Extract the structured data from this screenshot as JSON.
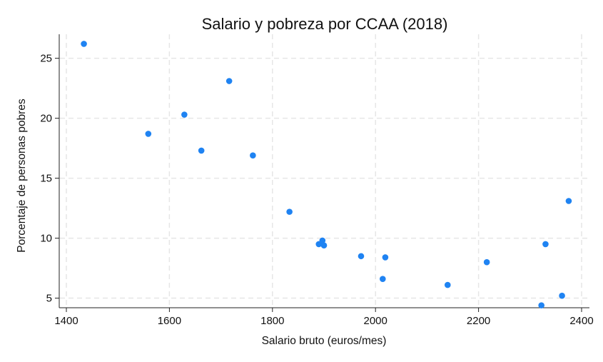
{
  "chart_data": {
    "type": "scatter",
    "title": "Salario y pobreza por CCAA (2018)",
    "xlabel": "Salario bruto (euros/mes)",
    "ylabel": "Porcentaje de personas pobres",
    "xlim": [
      1400,
      2400
    ],
    "ylim": [
      4.2,
      27
    ],
    "xticks": [
      1400,
      1600,
      1800,
      2000,
      2200,
      2400
    ],
    "yticks": [
      5,
      10,
      15,
      20,
      25
    ],
    "grid": true,
    "marker_color": "#1f83f2",
    "points": [
      {
        "x": 1434,
        "y": 26.2
      },
      {
        "x": 1559,
        "y": 18.7
      },
      {
        "x": 1629,
        "y": 20.3
      },
      {
        "x": 1662,
        "y": 17.3
      },
      {
        "x": 1716,
        "y": 23.1
      },
      {
        "x": 1762,
        "y": 16.9
      },
      {
        "x": 1833,
        "y": 12.2
      },
      {
        "x": 1890,
        "y": 9.5
      },
      {
        "x": 1897,
        "y": 9.8
      },
      {
        "x": 1900,
        "y": 9.4
      },
      {
        "x": 1972,
        "y": 8.5
      },
      {
        "x": 2014,
        "y": 6.6
      },
      {
        "x": 2019,
        "y": 8.4
      },
      {
        "x": 2140,
        "y": 6.1
      },
      {
        "x": 2216,
        "y": 8.0
      },
      {
        "x": 2322,
        "y": 4.4
      },
      {
        "x": 2330,
        "y": 9.5
      },
      {
        "x": 2362,
        "y": 5.2
      },
      {
        "x": 2375,
        "y": 13.1
      }
    ]
  }
}
